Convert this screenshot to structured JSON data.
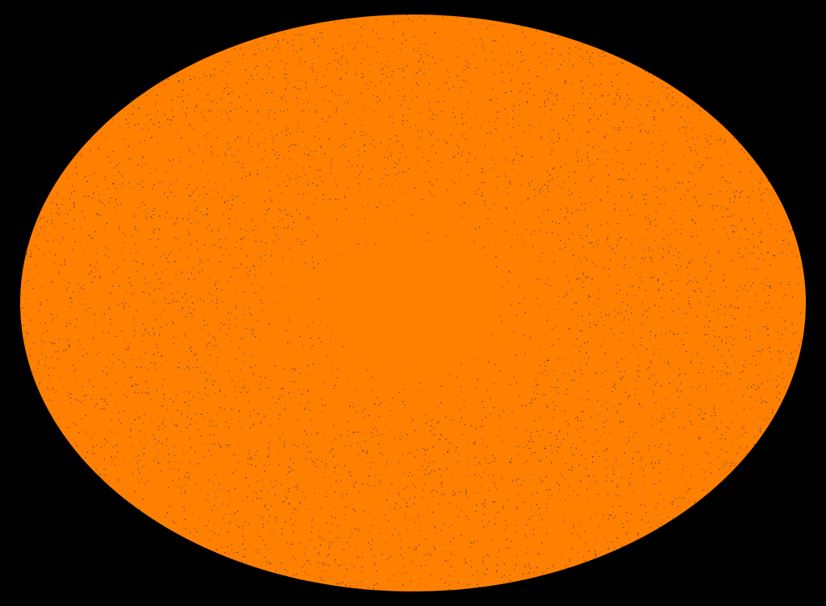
{
  "scene": {
    "background_color": "#000000",
    "fill_color": "#ff8000",
    "texture_color": "#4a2a5a",
    "center_color": "#ff8000",
    "shape": "ellipse"
  }
}
